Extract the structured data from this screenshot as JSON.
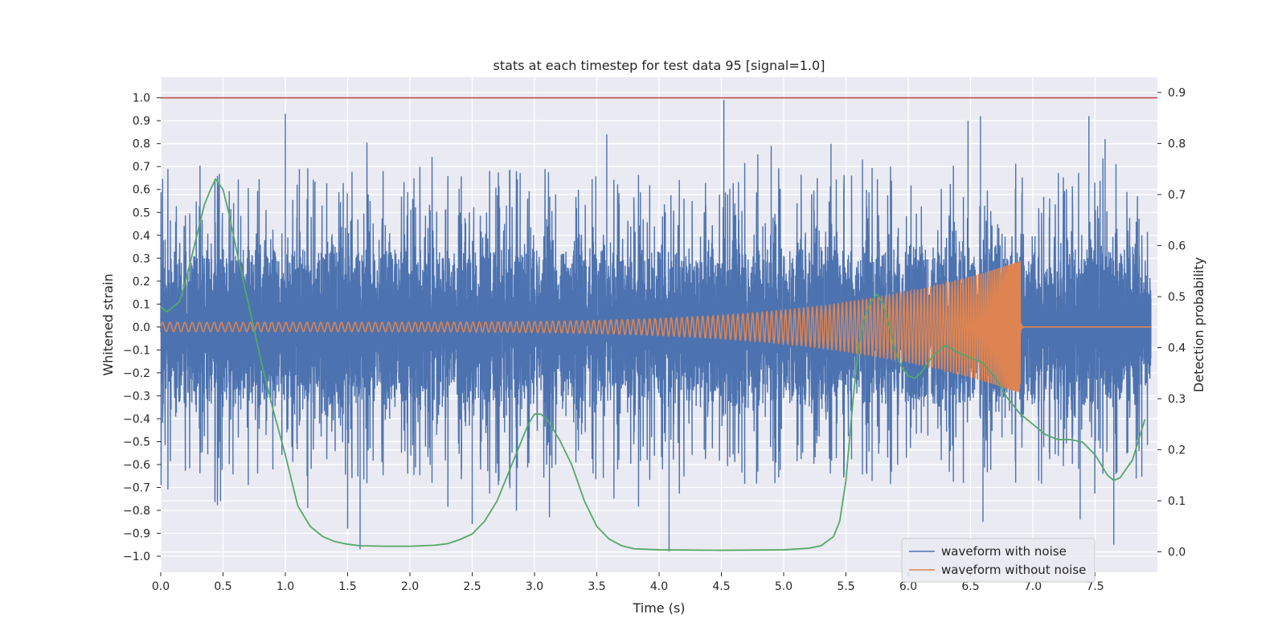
{
  "chart_data": {
    "type": "line",
    "title": "stats at each timestep for test data 95 [signal=1.0]",
    "xlabel": "Time (s)",
    "ylabel_left": "Whitened strain",
    "ylabel_right": "Detection probability",
    "xlim": [
      0.0,
      8.0
    ],
    "ylim_left": [
      -1.07,
      1.09
    ],
    "ylim_right": [
      -0.04,
      0.93
    ],
    "x_ticks": [
      "0.0",
      "0.5",
      "1.0",
      "1.5",
      "2.0",
      "2.5",
      "3.0",
      "3.5",
      "4.0",
      "4.5",
      "5.0",
      "5.5",
      "6.0",
      "6.5",
      "7.0",
      "7.5"
    ],
    "y_left_ticks": [
      "-1.0",
      "-0.9",
      "-0.8",
      "-0.7",
      "-0.6",
      "-0.5",
      "-0.4",
      "-0.3",
      "-0.2",
      "-0.1",
      "0.0",
      "0.1",
      "0.2",
      "0.3",
      "0.4",
      "0.5",
      "0.6",
      "0.7",
      "0.8",
      "0.9",
      "1.0"
    ],
    "y_right_ticks": [
      "0.0",
      "0.1",
      "0.2",
      "0.3",
      "0.4",
      "0.5",
      "0.6",
      "0.7",
      "0.8",
      "0.9"
    ],
    "threshold": {
      "value": 1.0,
      "color": "#c44e52"
    },
    "legend": {
      "placement": "lower-right"
    },
    "grid": true,
    "series": [
      {
        "name": "waveform with noise",
        "color": "#4c72b0",
        "axis": "left",
        "envelope": {
          "typical_min": -0.33,
          "typical_max": 0.34
        },
        "spikes": [
          {
            "x": 1.0,
            "y": 0.93
          },
          {
            "x": 4.52,
            "y": 0.99
          },
          {
            "x": 3.58,
            "y": 0.84
          },
          {
            "x": 5.38,
            "y": 0.8
          },
          {
            "x": 6.58,
            "y": 0.92
          },
          {
            "x": 6.48,
            "y": 0.9
          },
          {
            "x": 7.45,
            "y": 0.92
          },
          {
            "x": 7.58,
            "y": 0.82
          },
          {
            "x": 4.9,
            "y": 0.79
          },
          {
            "x": 1.6,
            "y": -0.97
          },
          {
            "x": 4.08,
            "y": -0.98
          },
          {
            "x": 7.65,
            "y": -0.95
          },
          {
            "x": 1.5,
            "y": -0.88
          },
          {
            "x": 2.5,
            "y": -0.86
          },
          {
            "x": 6.6,
            "y": -0.85
          },
          {
            "x": 3.12,
            "y": -0.83
          },
          {
            "x": 7.38,
            "y": -0.84
          },
          {
            "x": 0.48,
            "y": -0.76
          },
          {
            "x": 1.18,
            "y": -0.79
          }
        ]
      },
      {
        "name": "waveform without noise",
        "color": "#dd8452",
        "axis": "left",
        "chirp": {
          "start_amplitude": 0.02,
          "end_time": 6.9,
          "end_amplitude": 0.29,
          "start_period": 0.06
        }
      },
      {
        "name": "",
        "color": "#55a868",
        "axis": "right",
        "x": [
          0.0,
          0.05,
          0.15,
          0.2,
          0.3,
          0.35,
          0.4,
          0.44,
          0.5,
          0.55,
          0.6,
          0.7,
          0.8,
          0.9,
          1.0,
          1.05,
          1.1,
          1.2,
          1.3,
          1.4,
          1.5,
          1.6,
          1.8,
          2.0,
          2.2,
          2.3,
          2.4,
          2.5,
          2.6,
          2.7,
          2.8,
          2.9,
          2.95,
          3.0,
          3.05,
          3.1,
          3.2,
          3.3,
          3.4,
          3.5,
          3.6,
          3.7,
          3.8,
          4.0,
          4.5,
          5.0,
          5.2,
          5.3,
          5.4,
          5.45,
          5.5,
          5.55,
          5.6,
          5.65,
          5.7,
          5.75,
          5.8,
          5.85,
          5.9,
          5.95,
          6.0,
          6.05,
          6.1,
          6.2,
          6.3,
          6.4,
          6.5,
          6.6,
          6.7,
          6.8,
          6.9,
          7.0,
          7.1,
          7.2,
          7.3,
          7.4,
          7.5,
          7.6,
          7.65,
          7.7,
          7.8,
          7.9
        ],
        "y": [
          0.48,
          0.47,
          0.49,
          0.53,
          0.63,
          0.68,
          0.71,
          0.73,
          0.71,
          0.66,
          0.6,
          0.49,
          0.38,
          0.28,
          0.19,
          0.14,
          0.09,
          0.05,
          0.03,
          0.02,
          0.015,
          0.012,
          0.011,
          0.011,
          0.013,
          0.016,
          0.024,
          0.035,
          0.06,
          0.1,
          0.16,
          0.22,
          0.25,
          0.27,
          0.27,
          0.26,
          0.22,
          0.17,
          0.1,
          0.05,
          0.025,
          0.012,
          0.006,
          0.004,
          0.003,
          0.004,
          0.007,
          0.012,
          0.03,
          0.06,
          0.14,
          0.28,
          0.4,
          0.46,
          0.49,
          0.505,
          0.485,
          0.44,
          0.39,
          0.36,
          0.345,
          0.34,
          0.35,
          0.385,
          0.405,
          0.39,
          0.38,
          0.37,
          0.34,
          0.3,
          0.27,
          0.25,
          0.23,
          0.22,
          0.22,
          0.215,
          0.19,
          0.15,
          0.14,
          0.145,
          0.18,
          0.26
        ]
      }
    ]
  }
}
